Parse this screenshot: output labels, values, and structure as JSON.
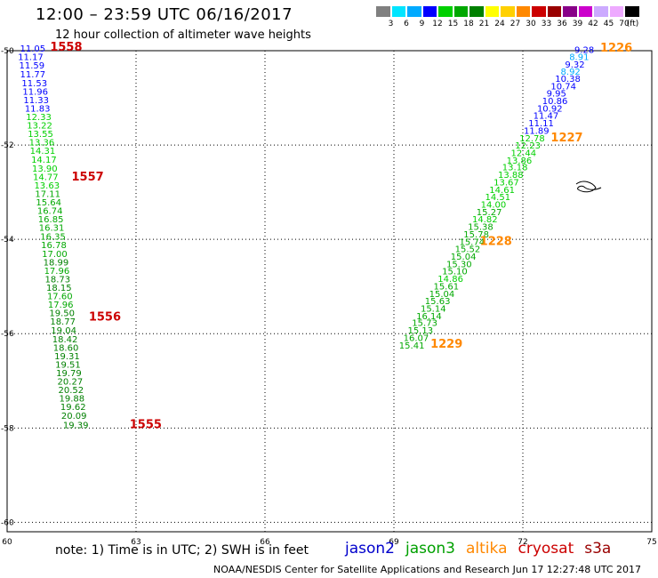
{
  "header": {
    "title": "12:00 – 23:59 UTC 06/16/2017",
    "subtitle": "12 hour collection of altimeter wave heights"
  },
  "legend": {
    "colors": [
      "#808080",
      "#00e5ff",
      "#00aaff",
      "#0000ff",
      "#00d000",
      "#00a800",
      "#008000",
      "#ffff00",
      "#ffd000",
      "#ff8800",
      "#cc0000",
      "#990000",
      "#880088",
      "#cc00cc",
      "#ccaaff",
      "#eeaaff",
      "#000000"
    ],
    "labels": [
      "3",
      "6",
      "9",
      "12",
      "15",
      "18",
      "21",
      "24",
      "27",
      "30",
      "33",
      "36",
      "39",
      "42",
      "45",
      "70",
      "(ft)"
    ]
  },
  "map": {
    "lon_range": [
      60,
      75
    ],
    "lat_range": [
      -60.2,
      -50
    ],
    "x_ticks": [
      "60",
      "63",
      "66",
      "69",
      "72",
      "75"
    ],
    "y_ticks": [
      "-50",
      "-52",
      "-54",
      "-56",
      "-58",
      "-60"
    ],
    "grid": "dotted",
    "color_scale_ft": {
      "bins": [
        3,
        6,
        9,
        12,
        15,
        18,
        21,
        24,
        27,
        30,
        33,
        36,
        39,
        42,
        45,
        70
      ],
      "colors": [
        "#808080",
        "#00e5ff",
        "#00aaff",
        "#0000ff",
        "#00d000",
        "#00a800",
        "#008000",
        "#ffff00",
        "#ffd000",
        "#ff8800",
        "#cc0000",
        "#990000",
        "#880088",
        "#cc00cc",
        "#ccaaff",
        "#eeaaff"
      ]
    },
    "tracks": [
      {
        "points": [
          {
            "lon": 60.3,
            "lat": -50.02,
            "v": "11.05"
          },
          {
            "lon": 60.25,
            "lat": -50.2,
            "v": "11.17"
          },
          {
            "lon": 60.28,
            "lat": -50.38,
            "v": "11.59"
          },
          {
            "lon": 60.3,
            "lat": -50.57,
            "v": "11.77"
          },
          {
            "lon": 60.34,
            "lat": -50.75,
            "v": "11.53"
          },
          {
            "lon": 60.36,
            "lat": -50.93,
            "v": "11.96"
          },
          {
            "lon": 60.38,
            "lat": -51.11,
            "v": "11.33"
          },
          {
            "lon": 60.41,
            "lat": -51.29,
            "v": "11.83"
          },
          {
            "lon": 60.44,
            "lat": -51.47,
            "v": "12.33"
          },
          {
            "lon": 60.46,
            "lat": -51.65,
            "v": "13.22"
          },
          {
            "lon": 60.48,
            "lat": -51.83,
            "v": "13.55"
          },
          {
            "lon": 60.51,
            "lat": -52.01,
            "v": "13.36"
          },
          {
            "lon": 60.53,
            "lat": -52.19,
            "v": "14.31"
          },
          {
            "lon": 60.56,
            "lat": -52.38,
            "v": "14.17"
          },
          {
            "lon": 60.58,
            "lat": -52.56,
            "v": "13.90"
          },
          {
            "lon": 60.6,
            "lat": -52.74,
            "v": "14.77"
          },
          {
            "lon": 60.63,
            "lat": -52.92,
            "v": "13.63"
          },
          {
            "lon": 60.65,
            "lat": -53.1,
            "v": "17.11"
          },
          {
            "lon": 60.67,
            "lat": -53.28,
            "v": "15.64"
          },
          {
            "lon": 60.7,
            "lat": -53.46,
            "v": "16.74"
          },
          {
            "lon": 60.72,
            "lat": -53.64,
            "v": "16.85"
          },
          {
            "lon": 60.74,
            "lat": -53.82,
            "v": "16.31"
          },
          {
            "lon": 60.77,
            "lat": -54.01,
            "v": "16.35"
          },
          {
            "lon": 60.79,
            "lat": -54.19,
            "v": "16.78"
          },
          {
            "lon": 60.81,
            "lat": -54.37,
            "v": "17.00"
          },
          {
            "lon": 60.84,
            "lat": -54.55,
            "v": "18.99"
          },
          {
            "lon": 60.86,
            "lat": -54.73,
            "v": "17.96"
          },
          {
            "lon": 60.88,
            "lat": -54.91,
            "v": "18.73"
          },
          {
            "lon": 60.91,
            "lat": -55.09,
            "v": "18.15"
          },
          {
            "lon": 60.93,
            "lat": -55.27,
            "v": "17.60"
          },
          {
            "lon": 60.95,
            "lat": -55.45,
            "v": "17.96"
          },
          {
            "lon": 60.98,
            "lat": -55.63,
            "v": "19.50"
          },
          {
            "lon": 61.0,
            "lat": -55.81,
            "v": "18.77"
          },
          {
            "lon": 61.02,
            "lat": -56.0,
            "v": "19.04"
          },
          {
            "lon": 61.05,
            "lat": -56.18,
            "v": "18.42"
          },
          {
            "lon": 61.07,
            "lat": -56.36,
            "v": "18.60"
          },
          {
            "lon": 61.1,
            "lat": -56.54,
            "v": "19.31"
          },
          {
            "lon": 61.12,
            "lat": -56.72,
            "v": "19.51"
          },
          {
            "lon": 61.14,
            "lat": -56.9,
            "v": "19.79"
          },
          {
            "lon": 61.17,
            "lat": -57.08,
            "v": "20.27"
          },
          {
            "lon": 61.19,
            "lat": -57.26,
            "v": "20.52"
          },
          {
            "lon": 61.21,
            "lat": -57.44,
            "v": "19.88"
          },
          {
            "lon": 61.24,
            "lat": -57.62,
            "v": "19.62"
          },
          {
            "lon": 61.26,
            "lat": -57.81,
            "v": "20.09"
          },
          {
            "lon": 61.3,
            "lat": -58.0,
            "v": "19.39"
          }
        ]
      },
      {
        "points": [
          {
            "lon": 73.2,
            "lat": -50.05,
            "v": "9.28"
          },
          {
            "lon": 73.08,
            "lat": -50.2,
            "v": "8.91"
          },
          {
            "lon": 72.98,
            "lat": -50.36,
            "v": "9.32"
          },
          {
            "lon": 72.88,
            "lat": -50.51,
            "v": "8.92"
          },
          {
            "lon": 72.75,
            "lat": -50.66,
            "v": "10.38"
          },
          {
            "lon": 72.65,
            "lat": -50.82,
            "v": "10.74"
          },
          {
            "lon": 72.55,
            "lat": -50.97,
            "v": "9.95"
          },
          {
            "lon": 72.45,
            "lat": -51.13,
            "v": "10.86"
          },
          {
            "lon": 72.33,
            "lat": -51.29,
            "v": "10.92"
          },
          {
            "lon": 72.24,
            "lat": -51.44,
            "v": "11.47"
          },
          {
            "lon": 72.13,
            "lat": -51.6,
            "v": "11.11"
          },
          {
            "lon": 72.02,
            "lat": -51.76,
            "v": "11.89"
          },
          {
            "lon": 71.92,
            "lat": -51.92,
            "v": "12.78"
          },
          {
            "lon": 71.82,
            "lat": -52.07,
            "v": "12.23"
          },
          {
            "lon": 71.72,
            "lat": -52.23,
            "v": "12.44"
          },
          {
            "lon": 71.62,
            "lat": -52.39,
            "v": "13.86"
          },
          {
            "lon": 71.52,
            "lat": -52.54,
            "v": "13.18"
          },
          {
            "lon": 71.42,
            "lat": -52.7,
            "v": "13.88"
          },
          {
            "lon": 71.32,
            "lat": -52.86,
            "v": "13.67"
          },
          {
            "lon": 71.22,
            "lat": -53.02,
            "v": "14.61"
          },
          {
            "lon": 71.12,
            "lat": -53.17,
            "v": "14.51"
          },
          {
            "lon": 71.02,
            "lat": -53.33,
            "v": "14.00"
          },
          {
            "lon": 70.92,
            "lat": -53.49,
            "v": "15.27"
          },
          {
            "lon": 70.82,
            "lat": -53.64,
            "v": "14.82"
          },
          {
            "lon": 70.72,
            "lat": -53.8,
            "v": "15.38"
          },
          {
            "lon": 70.62,
            "lat": -53.96,
            "v": "15.78"
          },
          {
            "lon": 70.52,
            "lat": -54.12,
            "v": "15.74"
          },
          {
            "lon": 70.42,
            "lat": -54.27,
            "v": "15.52"
          },
          {
            "lon": 70.32,
            "lat": -54.43,
            "v": "15.04"
          },
          {
            "lon": 70.22,
            "lat": -54.59,
            "v": "15.30"
          },
          {
            "lon": 70.12,
            "lat": -54.74,
            "v": "15.10"
          },
          {
            "lon": 70.02,
            "lat": -54.9,
            "v": "14.86"
          },
          {
            "lon": 69.92,
            "lat": -55.06,
            "v": "15.61"
          },
          {
            "lon": 69.82,
            "lat": -55.22,
            "v": "15.04"
          },
          {
            "lon": 69.72,
            "lat": -55.37,
            "v": "15.63"
          },
          {
            "lon": 69.62,
            "lat": -55.53,
            "v": "15.14"
          },
          {
            "lon": 69.52,
            "lat": -55.69,
            "v": "16.14"
          },
          {
            "lon": 69.42,
            "lat": -55.84,
            "v": "15.73"
          },
          {
            "lon": 69.32,
            "lat": -56.0,
            "v": "15.13"
          },
          {
            "lon": 69.22,
            "lat": -56.16,
            "v": "16.07"
          },
          {
            "lon": 69.12,
            "lat": -56.32,
            "v": "15.41"
          }
        ]
      }
    ],
    "time_labels": [
      {
        "text": "1558",
        "lon": 61.0,
        "lat": -50.0,
        "color": "#cc0000"
      },
      {
        "text": "1557",
        "lon": 61.5,
        "lat": -52.75,
        "color": "#cc0000"
      },
      {
        "text": "1556",
        "lon": 61.9,
        "lat": -55.72,
        "color": "#cc0000"
      },
      {
        "text": "1555",
        "lon": 62.85,
        "lat": -58.0,
        "color": "#cc0000"
      },
      {
        "text": "1226",
        "lon": 73.8,
        "lat": -50.02,
        "color": "#ff8800"
      },
      {
        "text": "1227",
        "lon": 72.65,
        "lat": -51.92,
        "color": "#ff8800"
      },
      {
        "text": "1228",
        "lon": 71.0,
        "lat": -54.12,
        "color": "#ff8800"
      },
      {
        "text": "1229",
        "lon": 69.85,
        "lat": -56.3,
        "color": "#ff8800"
      }
    ]
  },
  "note": "note:  1) Time is in UTC;  2) SWH is in feet",
  "missions": [
    {
      "name": "jason2",
      "color": "#0000cc"
    },
    {
      "name": "jason3",
      "color": "#00a000"
    },
    {
      "name": "altika",
      "color": "#ff8800"
    },
    {
      "name": "cryosat",
      "color": "#cc0000"
    },
    {
      "name": "s3a",
      "color": "#990000"
    }
  ],
  "footer": "NOAA/NESDIS Center for Satellite Applications and Research    Jun 17 12:27:48 UTC 2017"
}
